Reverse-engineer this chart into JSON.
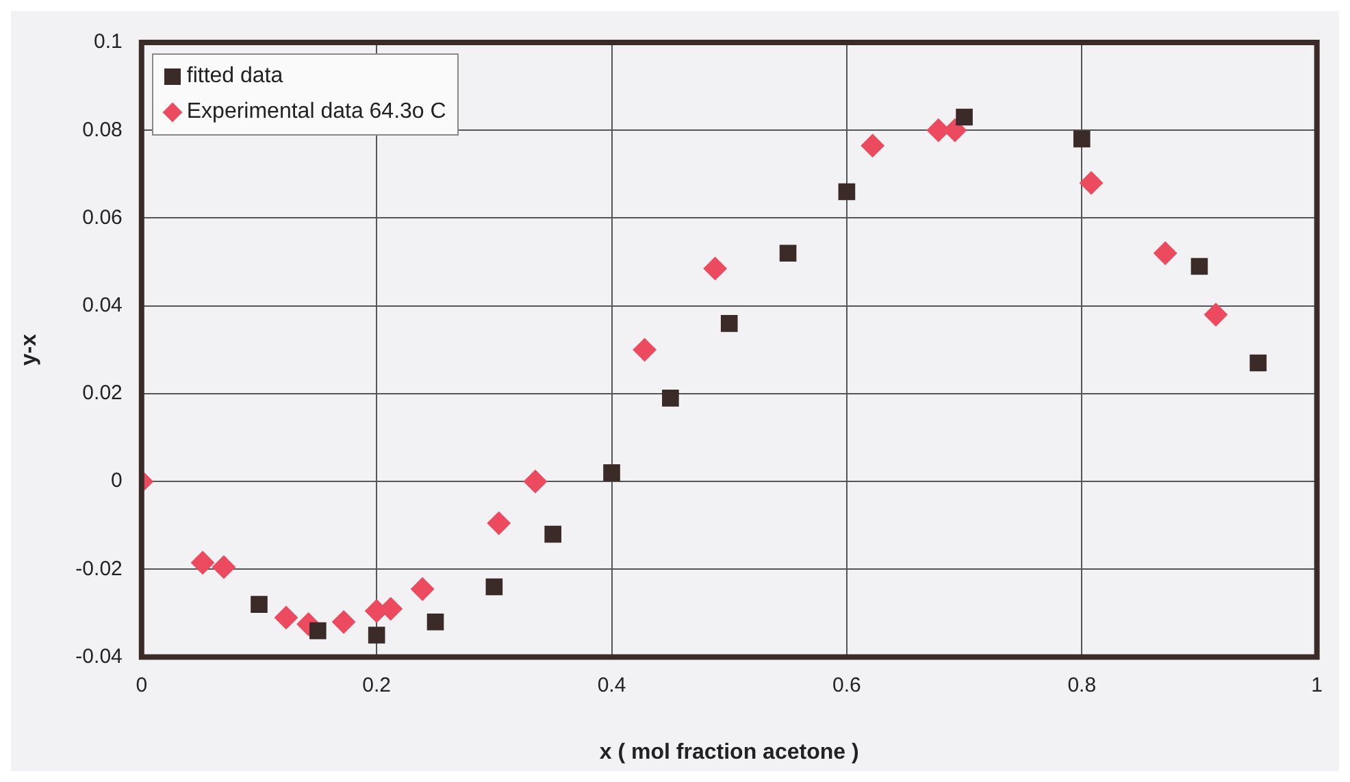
{
  "chart_data": {
    "type": "scatter",
    "xlabel": "x ( mol fraction acetone )",
    "ylabel": "y-x",
    "xlim": [
      0,
      1
    ],
    "xticks": [
      0,
      0.2,
      0.4,
      0.6,
      0.8,
      1
    ],
    "ylim": [
      -0.04,
      0.1
    ],
    "yticks": [
      -0.04,
      -0.02,
      0,
      0.02,
      0.04,
      0.06,
      0.08,
      0.1
    ],
    "grid": true,
    "legend": "top left",
    "series": [
      {
        "name": "fitted data",
        "color": "#3a2a28",
        "marker": "square",
        "x": [
          0.1,
          0.15,
          0.2,
          0.25,
          0.3,
          0.35,
          0.4,
          0.45,
          0.5,
          0.55,
          0.6,
          0.7,
          0.8,
          0.9,
          0.95
        ],
        "values": [
          -0.028,
          -0.034,
          -0.035,
          -0.032,
          -0.024,
          -0.012,
          0.002,
          0.019,
          0.036,
          0.052,
          0.066,
          0.083,
          0.078,
          0.049,
          0.027
        ]
      },
      {
        "name": "Experimental data 64.3o C",
        "color": "#ec4a5e",
        "marker": "diamond",
        "x": [
          0,
          0.052,
          0.07,
          0.123,
          0.142,
          0.172,
          0.2,
          0.212,
          0.239,
          0.304,
          0.335,
          0.428,
          0.488,
          0.622,
          0.678,
          0.692,
          0.808,
          0.871,
          0.914
        ],
        "values": [
          0,
          -0.0185,
          -0.0195,
          -0.031,
          -0.0325,
          -0.032,
          -0.0295,
          -0.029,
          -0.0245,
          -0.0095,
          0,
          0.03,
          0.0485,
          0.0765,
          0.08,
          0.08,
          0.068,
          0.052,
          0.038
        ]
      }
    ]
  }
}
